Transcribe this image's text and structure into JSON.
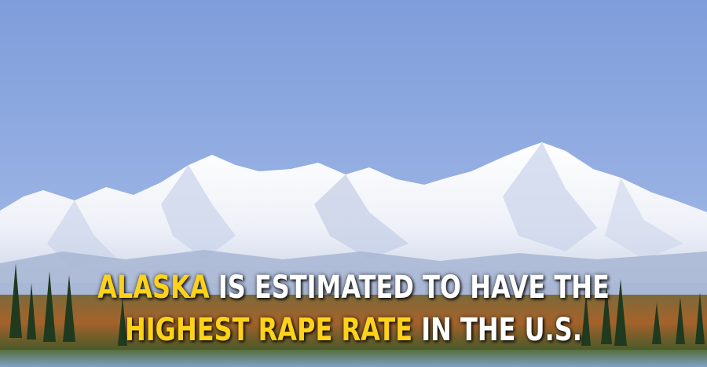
{
  "caption": {
    "line1_highlight": "ALASKA",
    "line1_rest": " IS ESTIMATED TO HAVE THE",
    "line2_highlight": "HIGHEST RAPE RATE",
    "line2_rest": " IN THE U.S."
  },
  "colors": {
    "highlight": "#ffd21a",
    "text": "#ffffff",
    "sky": "#8fa9dd",
    "snow": "#f4f6fb"
  }
}
